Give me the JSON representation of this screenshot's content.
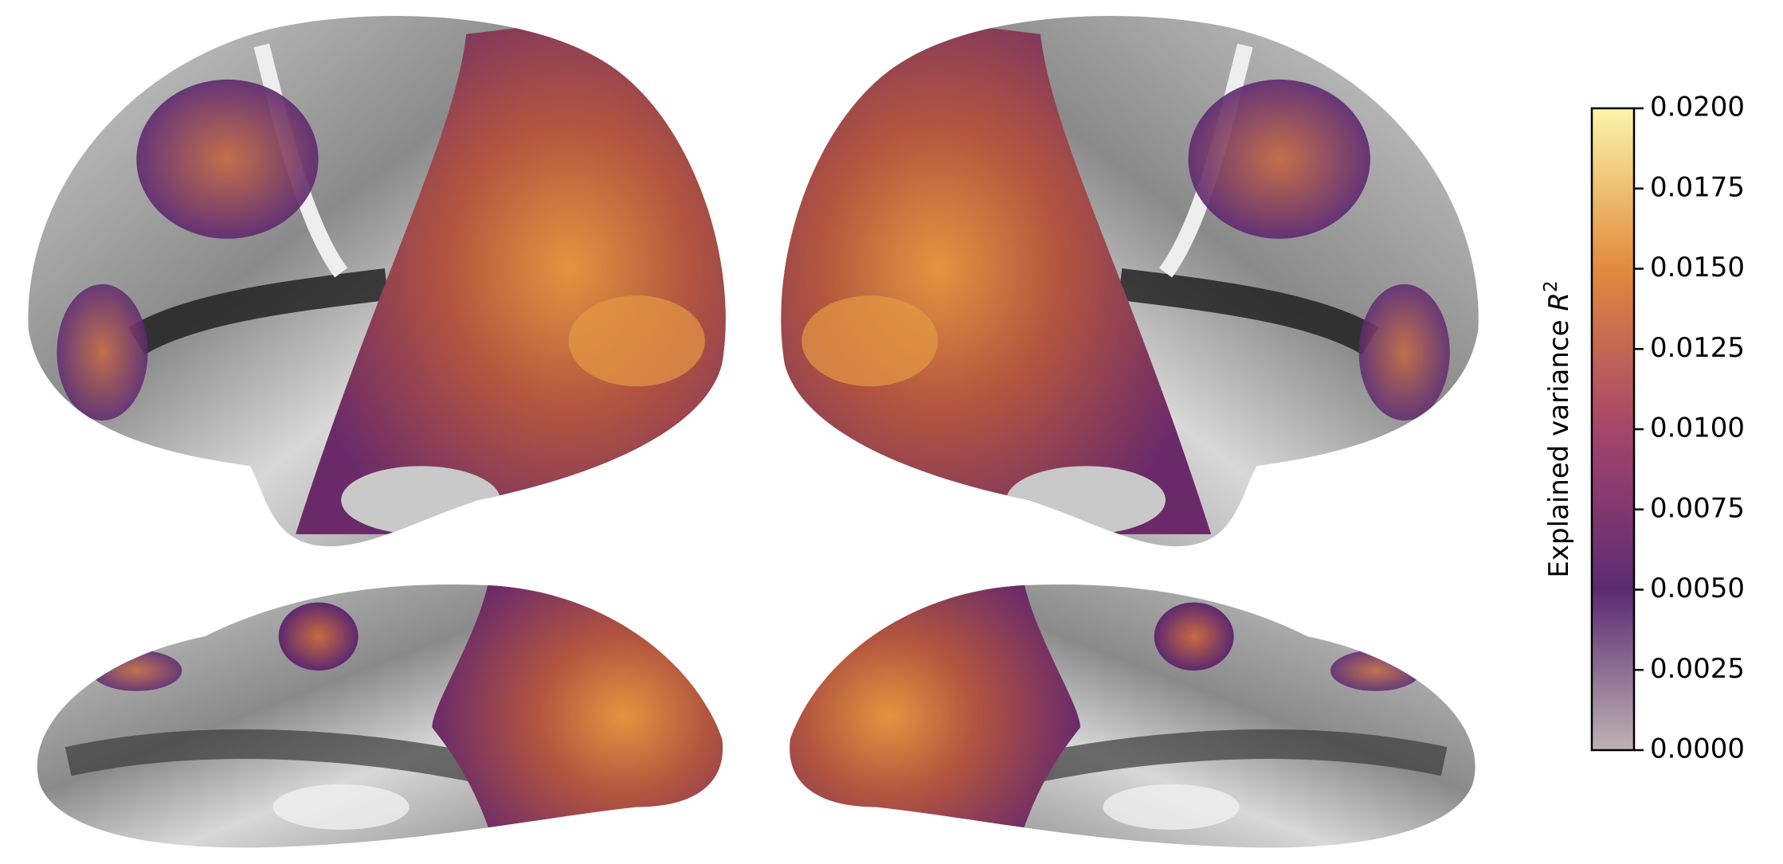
{
  "colorbar": {
    "label": "Explained variance",
    "variable": "R",
    "exponent": "2",
    "lim": [
      0,
      0.02
    ],
    "ticks": [
      {
        "value": 0,
        "label": "0.0000"
      },
      {
        "value": 0.0025,
        "label": "0.0025"
      },
      {
        "value": 0.005,
        "label": "0.0050"
      },
      {
        "value": 0.0075,
        "label": "0.0075"
      },
      {
        "value": 0.01,
        "label": "0.0100"
      },
      {
        "value": 0.0125,
        "label": "0.0125"
      },
      {
        "value": 0.015,
        "label": "0.0150"
      },
      {
        "value": 0.0175,
        "label": "0.0175"
      },
      {
        "value": 0.02,
        "label": "0.0200"
      }
    ]
  }
}
